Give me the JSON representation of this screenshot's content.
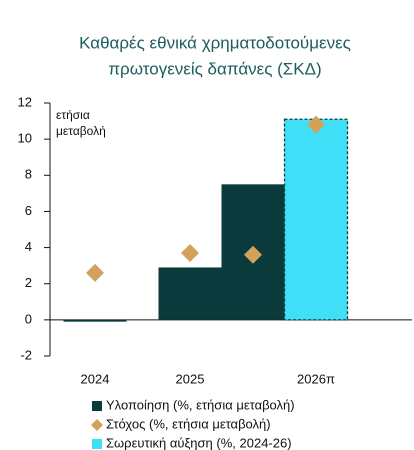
{
  "chart_data": {
    "type": "bar",
    "title": [
      "Καθαρές εθνικά χρηματοδοτούμενες",
      "πρωτογενείς δαπάνες (ΣΚΔ)"
    ],
    "annotation": [
      "ετήσια",
      "μεταβολή"
    ],
    "categories": [
      "2024",
      "2025",
      "2026π"
    ],
    "series": [
      {
        "name": "Υλοποίηση (%, ετήσια μεταβολή)",
        "color": "#0b3a3c",
        "values": [
          -0.1,
          2.9,
          7.5
        ]
      },
      {
        "name": "Στόχος (%, ετήσια μεταβολή)",
        "color": "#d3a15a",
        "values": [
          2.6,
          3.7,
          3.6
        ]
      },
      {
        "name": "Σωρευτική αύξηση (%, 2024-26)",
        "color": "#3fe0f7",
        "values": [
          null,
          null,
          11.1
        ],
        "target_values": [
          null,
          null,
          10.8
        ]
      }
    ],
    "ylim": [
      -2,
      12
    ],
    "yticks": [
      -2,
      0,
      2,
      4,
      6,
      8,
      10,
      12
    ]
  }
}
